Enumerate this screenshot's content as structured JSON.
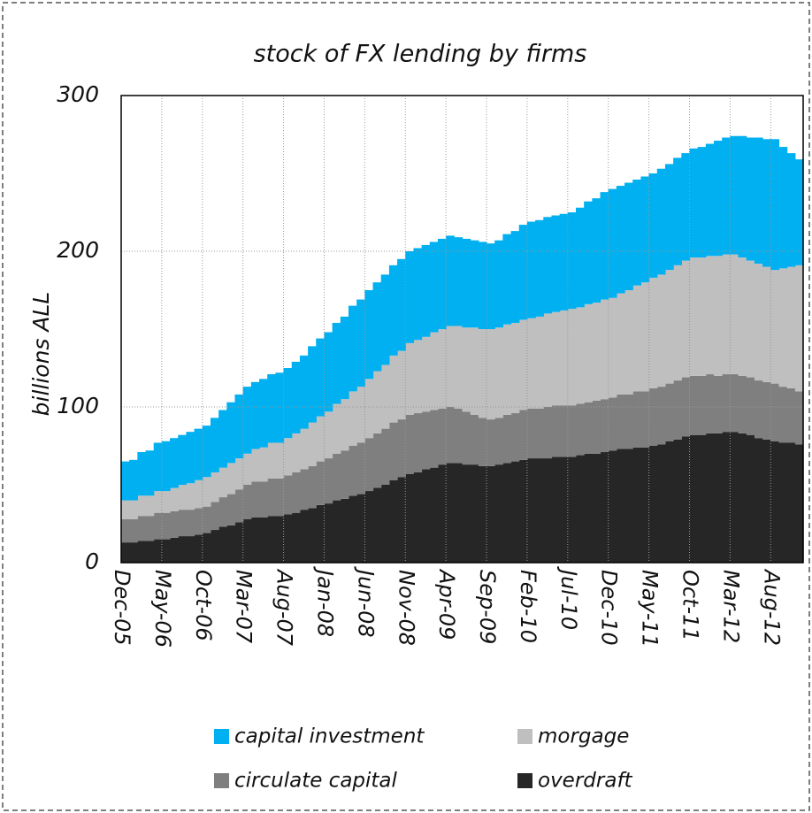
{
  "chart_data": {
    "type": "stacked-step-area",
    "title": "stock of FX lending by firms",
    "y_label": "billions ALL",
    "categories": [
      "Dec-05",
      null,
      null,
      null,
      null,
      "May-06",
      null,
      null,
      null,
      null,
      "Oct-06",
      null,
      null,
      null,
      null,
      "Mar-07",
      null,
      null,
      null,
      null,
      "Aug-07",
      null,
      null,
      null,
      null,
      "Jan-08",
      null,
      null,
      null,
      null,
      "Jun-08",
      null,
      null,
      null,
      null,
      "Nov-08",
      null,
      null,
      null,
      null,
      "Apr-09",
      null,
      null,
      null,
      null,
      "Sep-09",
      null,
      null,
      null,
      null,
      "Feb-10",
      null,
      null,
      null,
      null,
      "Jul-10",
      null,
      null,
      null,
      null,
      "Dec-10",
      null,
      null,
      null,
      null,
      "May-11",
      null,
      null,
      null,
      null,
      "Oct-11",
      null,
      null,
      null,
      null,
      "Mar-12",
      null,
      null,
      null,
      null,
      "Aug-12",
      null,
      null,
      null
    ],
    "series": [
      {
        "name": "overdraft",
        "color": "#262626",
        "values": [
          13,
          13,
          14,
          14,
          15,
          15,
          16,
          17,
          17,
          18,
          19,
          21,
          23,
          24,
          26,
          28,
          29,
          29,
          30,
          30,
          31,
          32,
          34,
          35,
          37,
          38,
          40,
          41,
          43,
          44,
          46,
          48,
          50,
          53,
          55,
          57,
          58,
          60,
          61,
          63,
          64,
          64,
          63,
          63,
          62,
          62,
          63,
          64,
          65,
          66,
          67,
          67,
          67,
          68,
          68,
          68,
          69,
          70,
          70,
          71,
          72,
          73,
          73,
          74,
          74,
          75,
          76,
          78,
          79,
          81,
          82,
          82,
          83,
          83,
          84,
          84,
          83,
          82,
          80,
          79,
          78,
          77,
          77,
          76
        ]
      },
      {
        "name": "circulate capital",
        "color": "#7f7f7f",
        "values": [
          15,
          15,
          16,
          16,
          17,
          17,
          17,
          17,
          17,
          17,
          17,
          18,
          19,
          20,
          21,
          22,
          23,
          23,
          24,
          24,
          25,
          26,
          26,
          27,
          28,
          29,
          30,
          31,
          32,
          33,
          34,
          35,
          36,
          37,
          37,
          38,
          38,
          37,
          37,
          36,
          36,
          35,
          34,
          32,
          31,
          30,
          30,
          31,
          31,
          32,
          32,
          32,
          33,
          33,
          33,
          33,
          33,
          33,
          34,
          34,
          34,
          35,
          35,
          36,
          36,
          37,
          37,
          37,
          38,
          38,
          38,
          38,
          38,
          37,
          37,
          37,
          37,
          37,
          37,
          37,
          37,
          36,
          35,
          34
        ]
      },
      {
        "name": "morgage",
        "color": "#bfbfbf",
        "values": [
          12,
          12,
          13,
          13,
          14,
          14,
          15,
          16,
          17,
          18,
          19,
          19,
          19,
          20,
          20,
          20,
          21,
          22,
          23,
          23,
          24,
          25,
          26,
          28,
          29,
          30,
          32,
          33,
          35,
          36,
          38,
          40,
          41,
          43,
          44,
          46,
          47,
          48,
          50,
          51,
          52,
          53,
          54,
          56,
          57,
          58,
          58,
          58,
          58,
          58,
          58,
          59,
          60,
          60,
          61,
          62,
          62,
          63,
          63,
          64,
          64,
          65,
          67,
          68,
          70,
          71,
          72,
          73,
          74,
          75,
          76,
          76,
          76,
          77,
          77,
          77,
          76,
          75,
          75,
          74,
          73,
          76,
          78,
          81
        ]
      },
      {
        "name": "capital investment",
        "color": "#00b0f0",
        "values": [
          25,
          26,
          28,
          29,
          31,
          32,
          32,
          32,
          33,
          33,
          33,
          35,
          37,
          39,
          41,
          43,
          43,
          44,
          44,
          45,
          45,
          46,
          47,
          49,
          50,
          51,
          52,
          53,
          55,
          56,
          57,
          57,
          58,
          58,
          59,
          59,
          59,
          59,
          58,
          58,
          58,
          57,
          57,
          56,
          56,
          55,
          56,
          58,
          59,
          61,
          62,
          62,
          62,
          62,
          62,
          62,
          64,
          66,
          67,
          69,
          70,
          69,
          69,
          68,
          68,
          67,
          68,
          68,
          69,
          69,
          70,
          71,
          72,
          74,
          75,
          76,
          78,
          79,
          81,
          82,
          84,
          78,
          73,
          68
        ]
      }
    ],
    "ylim": [
      0,
      300
    ],
    "yticks": [
      0,
      100,
      200,
      300
    ],
    "grid": true,
    "legend": "bottom"
  }
}
